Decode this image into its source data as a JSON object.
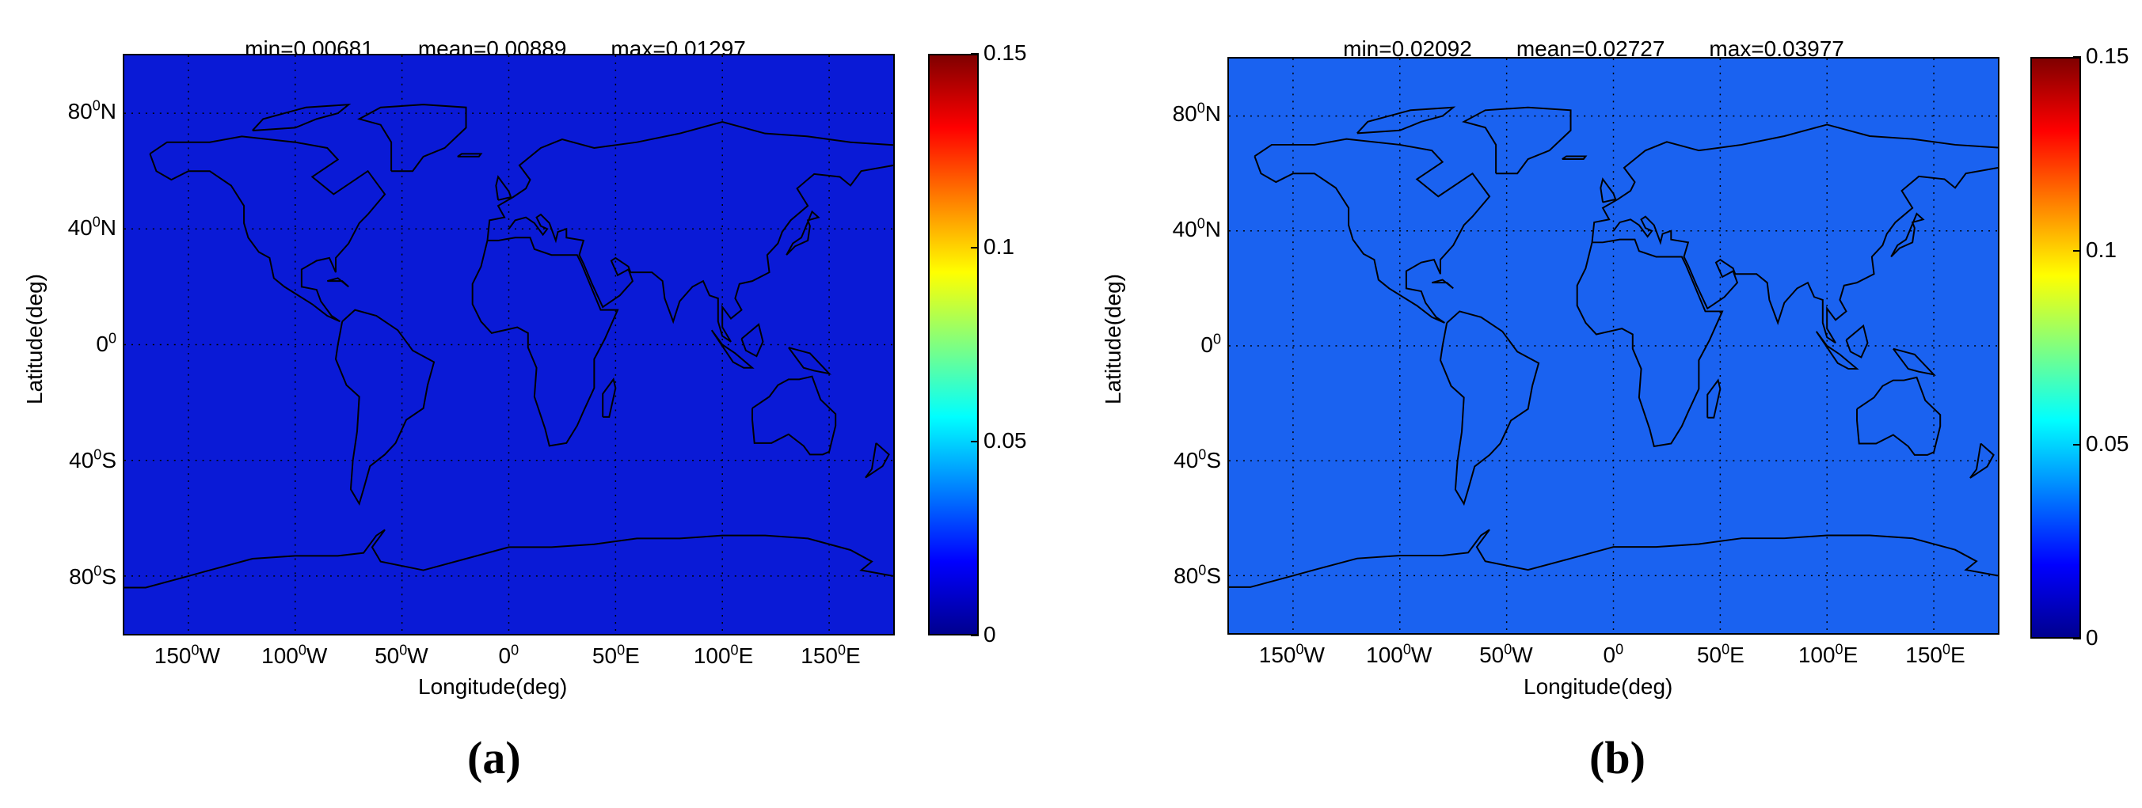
{
  "panels": [
    {
      "stats": {
        "min": "min=0.00681",
        "mean": "mean=0.00889",
        "max": "max=0.01297"
      },
      "fill_color": "#0a1ad6",
      "label": "(a)"
    },
    {
      "stats": {
        "min": "min=0.02092",
        "mean": "mean=0.02727",
        "max": "max=0.03977"
      },
      "fill_color": "#1a62f0",
      "label": "(b)"
    }
  ],
  "axes": {
    "xlabel": "Longitude(deg)",
    "ylabel": "Latitude(deg)",
    "xticks": [
      {
        "lon": -150,
        "num": "150",
        "deg": "0",
        "dir": "W"
      },
      {
        "lon": -100,
        "num": "100",
        "deg": "0",
        "dir": "W"
      },
      {
        "lon": -50,
        "num": "50",
        "deg": "0",
        "dir": "W"
      },
      {
        "lon": 0,
        "num": "0",
        "deg": "0",
        "dir": ""
      },
      {
        "lon": 50,
        "num": "50",
        "deg": "0",
        "dir": "E"
      },
      {
        "lon": 100,
        "num": "100",
        "deg": "0",
        "dir": "E"
      },
      {
        "lon": 150,
        "num": "150",
        "deg": "0",
        "dir": "E"
      }
    ],
    "yticks": [
      {
        "lat": 80,
        "num": "80",
        "deg": "0",
        "dir": "N"
      },
      {
        "lat": 40,
        "num": "40",
        "deg": "0",
        "dir": "N"
      },
      {
        "lat": 0,
        "num": "0",
        "deg": "0",
        "dir": ""
      },
      {
        "lat": -40,
        "num": "40",
        "deg": "0",
        "dir": "S"
      },
      {
        "lat": -80,
        "num": "80",
        "deg": "0",
        "dir": "S"
      }
    ],
    "lon_range": [
      -180,
      180
    ],
    "lat_range": [
      -100,
      100
    ]
  },
  "colorbar": {
    "range": [
      0,
      0.15
    ],
    "ticks": [
      {
        "value": 0,
        "label": "0"
      },
      {
        "value": 0.05,
        "label": "0.05"
      },
      {
        "value": 0.1,
        "label": "0.1"
      },
      {
        "value": 0.15,
        "label": "0.15"
      }
    ]
  }
}
